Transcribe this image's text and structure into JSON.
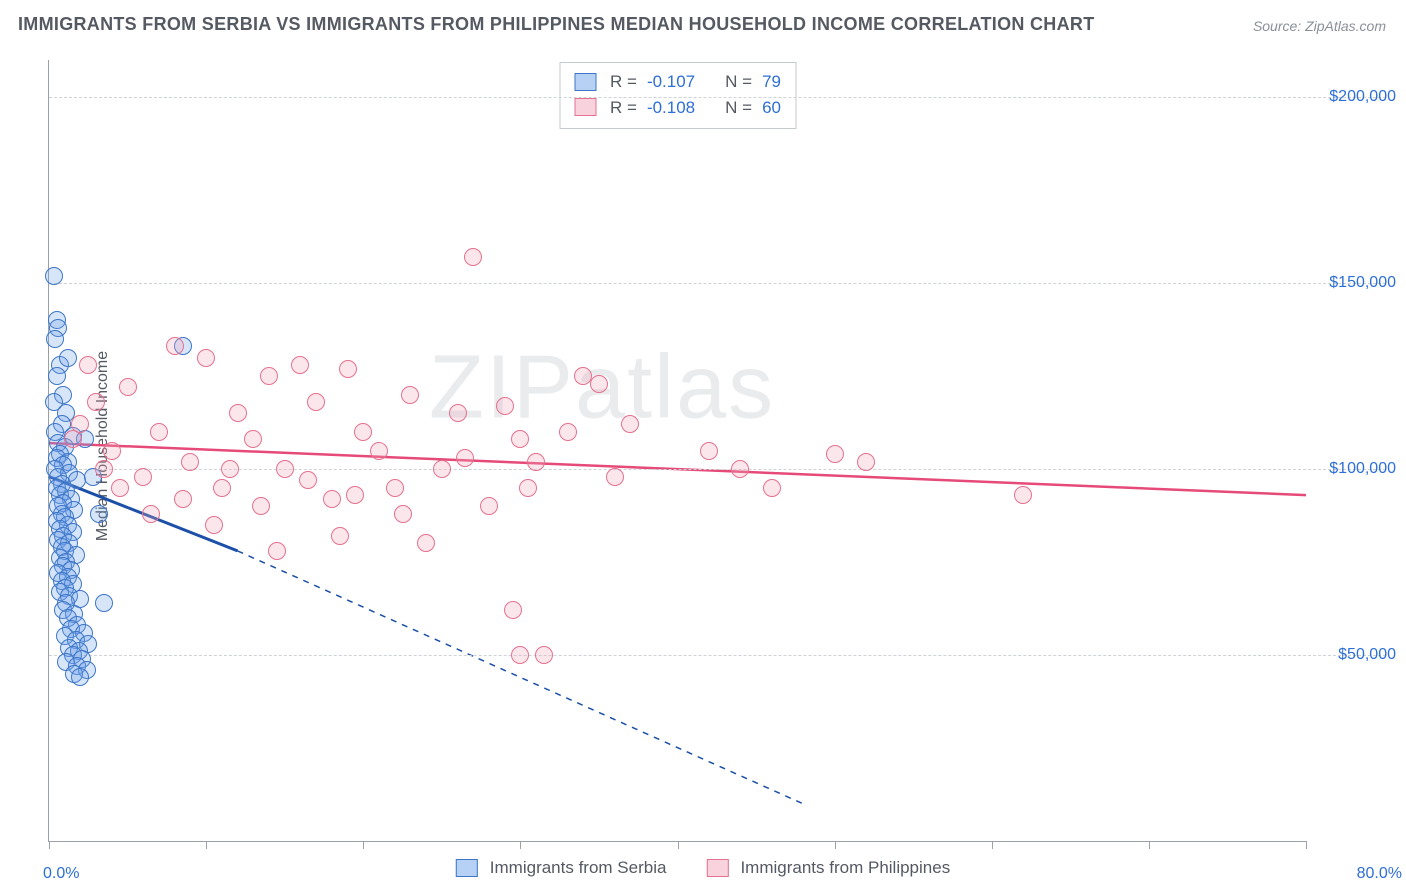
{
  "title": "IMMIGRANTS FROM SERBIA VS IMMIGRANTS FROM PHILIPPINES MEDIAN HOUSEHOLD INCOME CORRELATION CHART",
  "source_prefix": "Source: ",
  "source_name": "ZipAtlas.com",
  "ylabel": "Median Household Income",
  "watermark": "ZIPatlas",
  "chart": {
    "type": "scatter-correlation",
    "x_min": 0.0,
    "x_max": 80.0,
    "x_min_label": "0.0%",
    "x_max_label": "80.0%",
    "y_min": 0,
    "y_max": 210000,
    "y_gridlines": [
      50000,
      100000,
      150000,
      200000
    ],
    "y_tick_labels": [
      "$50,000",
      "$100,000",
      "$150,000",
      "$200,000"
    ],
    "x_tick_positions": [
      0,
      10,
      20,
      30,
      40,
      50,
      60,
      70,
      80
    ],
    "background_color": "#ffffff",
    "grid_color": "#cfd3d8",
    "axis_color": "#9aa0a8",
    "label_color": "#555962",
    "tick_label_color": "#2d6fd6",
    "point_radius": 9,
    "point_fill_opacity": 0.28,
    "series": [
      {
        "name": "Immigrants from Serbia",
        "color": "#6ea3e8",
        "stroke": "#3d76c8",
        "R_label": "R = ",
        "R_value": "-0.107",
        "N_label": "N = ",
        "N_value": "79",
        "trend_solid": {
          "x1": 0.0,
          "y1": 98000,
          "x2": 12.0,
          "y2": 78000
        },
        "trend_dashed": {
          "x1": 12.0,
          "y1": 78000,
          "x2": 48.0,
          "y2": 10000
        },
        "trend_color": "#1b4fa8",
        "trend_width": 3,
        "dash_pattern": "6,6",
        "points": [
          [
            0.3,
            152000
          ],
          [
            0.5,
            140000
          ],
          [
            0.6,
            138000
          ],
          [
            0.4,
            135000
          ],
          [
            0.7,
            128000
          ],
          [
            0.5,
            125000
          ],
          [
            0.9,
            120000
          ],
          [
            0.3,
            118000
          ],
          [
            1.1,
            115000
          ],
          [
            0.8,
            112000
          ],
          [
            0.4,
            110000
          ],
          [
            1.5,
            109000
          ],
          [
            0.6,
            107000
          ],
          [
            1.0,
            106000
          ],
          [
            0.7,
            104000
          ],
          [
            0.5,
            103000
          ],
          [
            1.2,
            102000
          ],
          [
            0.9,
            101000
          ],
          [
            0.4,
            100000
          ],
          [
            1.3,
            99000
          ],
          [
            0.6,
            98000
          ],
          [
            1.8,
            97000
          ],
          [
            0.8,
            96000
          ],
          [
            0.5,
            95000
          ],
          [
            1.1,
            94000
          ],
          [
            0.7,
            93000
          ],
          [
            1.4,
            92000
          ],
          [
            0.9,
            91000
          ],
          [
            0.6,
            90000
          ],
          [
            1.6,
            89000
          ],
          [
            0.8,
            88000
          ],
          [
            1.0,
            87000
          ],
          [
            0.5,
            86000
          ],
          [
            1.2,
            85000
          ],
          [
            0.7,
            84000
          ],
          [
            1.5,
            83000
          ],
          [
            0.9,
            82000
          ],
          [
            0.6,
            81000
          ],
          [
            1.3,
            80000
          ],
          [
            0.8,
            79000
          ],
          [
            1.0,
            78000
          ],
          [
            1.7,
            77000
          ],
          [
            0.7,
            76000
          ],
          [
            1.1,
            75000
          ],
          [
            0.9,
            74000
          ],
          [
            1.4,
            73000
          ],
          [
            0.6,
            72000
          ],
          [
            1.2,
            71000
          ],
          [
            0.8,
            70000
          ],
          [
            1.5,
            69000
          ],
          [
            1.0,
            68000
          ],
          [
            0.7,
            67000
          ],
          [
            1.3,
            66000
          ],
          [
            2.0,
            65000
          ],
          [
            1.1,
            64000
          ],
          [
            3.5,
            64000
          ],
          [
            0.9,
            62000
          ],
          [
            1.6,
            61000
          ],
          [
            1.2,
            60000
          ],
          [
            1.8,
            58000
          ],
          [
            1.4,
            57000
          ],
          [
            2.2,
            56000
          ],
          [
            1.0,
            55000
          ],
          [
            1.7,
            54000
          ],
          [
            2.5,
            53000
          ],
          [
            1.3,
            52000
          ],
          [
            1.9,
            51000
          ],
          [
            1.5,
            50000
          ],
          [
            2.1,
            49000
          ],
          [
            1.1,
            48000
          ],
          [
            1.8,
            47000
          ],
          [
            2.4,
            46000
          ],
          [
            1.6,
            45000
          ],
          [
            2.0,
            44000
          ],
          [
            8.5,
            133000
          ],
          [
            1.2,
            130000
          ],
          [
            2.3,
            108000
          ],
          [
            2.8,
            98000
          ],
          [
            3.2,
            88000
          ]
        ]
      },
      {
        "name": "Immigrants from Philippines",
        "color": "#f2a6bb",
        "stroke": "#e4718f",
        "R_label": "R = ",
        "R_value": "-0.108",
        "N_label": "N = ",
        "N_value": "60",
        "trend_solid": {
          "x1": 0.0,
          "y1": 107000,
          "x2": 80.0,
          "y2": 93000
        },
        "trend_dashed": null,
        "trend_color": "#e64a78",
        "trend_width": 2.5,
        "points": [
          [
            1.5,
            108000
          ],
          [
            2.0,
            112000
          ],
          [
            3.0,
            118000
          ],
          [
            4.0,
            105000
          ],
          [
            5.0,
            122000
          ],
          [
            6.0,
            98000
          ],
          [
            7.0,
            110000
          ],
          [
            8.0,
            133000
          ],
          [
            9.0,
            102000
          ],
          [
            10.0,
            130000
          ],
          [
            11.0,
            95000
          ],
          [
            12.0,
            115000
          ],
          [
            13.0,
            108000
          ],
          [
            14.0,
            125000
          ],
          [
            15.0,
            100000
          ],
          [
            16.0,
            128000
          ],
          [
            17.0,
            118000
          ],
          [
            18.0,
            92000
          ],
          [
            19.0,
            127000
          ],
          [
            20.0,
            110000
          ],
          [
            21.0,
            105000
          ],
          [
            22.0,
            95000
          ],
          [
            23.0,
            120000
          ],
          [
            24.0,
            80000
          ],
          [
            25.0,
            100000
          ],
          [
            26.0,
            115000
          ],
          [
            27.0,
            157000
          ],
          [
            28.0,
            90000
          ],
          [
            29.0,
            117000
          ],
          [
            30.0,
            108000
          ],
          [
            10.5,
            85000
          ],
          [
            14.5,
            78000
          ],
          [
            18.5,
            82000
          ],
          [
            30.5,
            95000
          ],
          [
            31.0,
            102000
          ],
          [
            33.0,
            110000
          ],
          [
            34.0,
            125000
          ],
          [
            35.0,
            123000
          ],
          [
            36.0,
            98000
          ],
          [
            37.0,
            112000
          ],
          [
            29.5,
            62000
          ],
          [
            30.0,
            50000
          ],
          [
            31.5,
            50000
          ],
          [
            42.0,
            105000
          ],
          [
            44.0,
            100000
          ],
          [
            46.0,
            95000
          ],
          [
            50.0,
            104000
          ],
          [
            52.0,
            102000
          ],
          [
            62.0,
            93000
          ],
          [
            4.5,
            95000
          ],
          [
            6.5,
            88000
          ],
          [
            8.5,
            92000
          ],
          [
            11.5,
            100000
          ],
          [
            13.5,
            90000
          ],
          [
            16.5,
            97000
          ],
          [
            19.5,
            93000
          ],
          [
            22.5,
            88000
          ],
          [
            26.5,
            103000
          ],
          [
            2.5,
            128000
          ],
          [
            3.5,
            100000
          ]
        ]
      }
    ]
  }
}
